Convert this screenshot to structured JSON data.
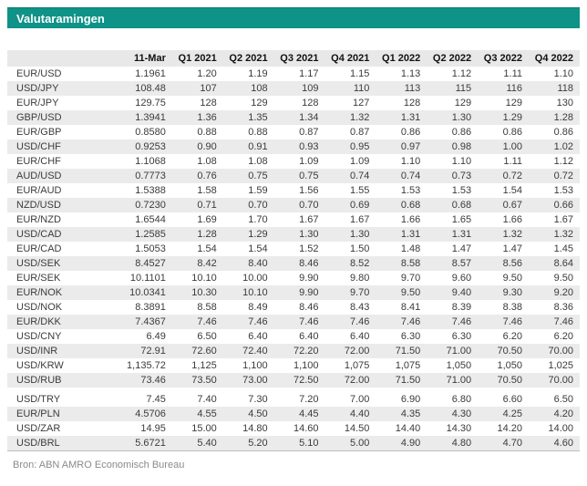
{
  "title": "Valutaramingen",
  "source": "Bron: ABN AMRO Economisch Bureau",
  "colors": {
    "accent_teal": "#0f9287",
    "stripe_gray": "#ebebeb",
    "header_gray": "#e8e8e8",
    "border_gray": "#bdbdbd",
    "text": "#3b3b3b",
    "source_text": "#8a8a8a"
  },
  "chart_data": {
    "type": "table",
    "columns": [
      "",
      "11-Mar",
      "Q1 2021",
      "Q2 2021",
      "Q3 2021",
      "Q4 2021",
      "Q1 2022",
      "Q2 2022",
      "Q3 2022",
      "Q4 2022"
    ],
    "group_break_index": 22,
    "rows": [
      {
        "pair": "EUR/USD",
        "values": [
          "1.1961",
          "1.20",
          "1.19",
          "1.17",
          "1.15",
          "1.13",
          "1.12",
          "1.11",
          "1.10"
        ]
      },
      {
        "pair": "USD/JPY",
        "values": [
          "108.48",
          "107",
          "108",
          "109",
          "110",
          "113",
          "115",
          "116",
          "118"
        ]
      },
      {
        "pair": "EUR/JPY",
        "values": [
          "129.75",
          "128",
          "129",
          "128",
          "127",
          "128",
          "129",
          "129",
          "130"
        ]
      },
      {
        "pair": "GBP/USD",
        "values": [
          "1.3941",
          "1.36",
          "1.35",
          "1.34",
          "1.32",
          "1.31",
          "1.30",
          "1.29",
          "1.28"
        ]
      },
      {
        "pair": "EUR/GBP",
        "values": [
          "0.8580",
          "0.88",
          "0.88",
          "0.87",
          "0.87",
          "0.86",
          "0.86",
          "0.86",
          "0.86"
        ]
      },
      {
        "pair": "USD/CHF",
        "values": [
          "0.9253",
          "0.90",
          "0.91",
          "0.93",
          "0.95",
          "0.97",
          "0.98",
          "1.00",
          "1.02"
        ]
      },
      {
        "pair": "EUR/CHF",
        "values": [
          "1.1068",
          "1.08",
          "1.08",
          "1.09",
          "1.09",
          "1.10",
          "1.10",
          "1.11",
          "1.12"
        ]
      },
      {
        "pair": "AUD/USD",
        "values": [
          "0.7773",
          "0.76",
          "0.75",
          "0.75",
          "0.74",
          "0.74",
          "0.73",
          "0.72",
          "0.72"
        ]
      },
      {
        "pair": "EUR/AUD",
        "values": [
          "1.5388",
          "1.58",
          "1.59",
          "1.56",
          "1.55",
          "1.53",
          "1.53",
          "1.54",
          "1.53"
        ]
      },
      {
        "pair": "NZD/USD",
        "values": [
          "0.7230",
          "0.71",
          "0.70",
          "0.70",
          "0.69",
          "0.68",
          "0.68",
          "0.67",
          "0.66"
        ]
      },
      {
        "pair": "EUR/NZD",
        "values": [
          "1.6544",
          "1.69",
          "1.70",
          "1.67",
          "1.67",
          "1.66",
          "1.65",
          "1.66",
          "1.67"
        ]
      },
      {
        "pair": "USD/CAD",
        "values": [
          "1.2585",
          "1.28",
          "1.29",
          "1.30",
          "1.30",
          "1.31",
          "1.31",
          "1.32",
          "1.32"
        ]
      },
      {
        "pair": "EUR/CAD",
        "values": [
          "1.5053",
          "1.54",
          "1.54",
          "1.52",
          "1.50",
          "1.48",
          "1.47",
          "1.47",
          "1.45"
        ]
      },
      {
        "pair": "USD/SEK",
        "values": [
          "8.4527",
          "8.42",
          "8.40",
          "8.46",
          "8.52",
          "8.58",
          "8.57",
          "8.56",
          "8.64"
        ]
      },
      {
        "pair": "EUR/SEK",
        "values": [
          "10.1101",
          "10.10",
          "10.00",
          "9.90",
          "9.80",
          "9.70",
          "9.60",
          "9.50",
          "9.50"
        ]
      },
      {
        "pair": "EUR/NOK",
        "values": [
          "10.0341",
          "10.30",
          "10.10",
          "9.90",
          "9.70",
          "9.50",
          "9.40",
          "9.30",
          "9.20"
        ]
      },
      {
        "pair": "USD/NOK",
        "values": [
          "8.3891",
          "8.58",
          "8.49",
          "8.46",
          "8.43",
          "8.41",
          "8.39",
          "8.38",
          "8.36"
        ]
      },
      {
        "pair": "EUR/DKK",
        "values": [
          "7.4367",
          "7.46",
          "7.46",
          "7.46",
          "7.46",
          "7.46",
          "7.46",
          "7.46",
          "7.46"
        ]
      },
      {
        "pair": "USD/CNY",
        "values": [
          "6.49",
          "6.50",
          "6.40",
          "6.40",
          "6.40",
          "6.30",
          "6.30",
          "6.20",
          "6.20"
        ]
      },
      {
        "pair": "USD/INR",
        "values": [
          "72.91",
          "72.60",
          "72.40",
          "72.20",
          "72.00",
          "71.50",
          "71.00",
          "70.50",
          "70.00"
        ]
      },
      {
        "pair": "USD/KRW",
        "values": [
          "1,135.72",
          "1,125",
          "1,100",
          "1,100",
          "1,075",
          "1,075",
          "1,050",
          "1,050",
          "1,025"
        ]
      },
      {
        "pair": "USD/RUB",
        "values": [
          "73.46",
          "73.50",
          "73.00",
          "72.50",
          "72.00",
          "71.50",
          "71.00",
          "70.50",
          "70.00"
        ]
      },
      {
        "pair": "USD/TRY",
        "values": [
          "7.45",
          "7.40",
          "7.30",
          "7.20",
          "7.00",
          "6.90",
          "6.80",
          "6.60",
          "6.50"
        ]
      },
      {
        "pair": "EUR/PLN",
        "values": [
          "4.5706",
          "4.55",
          "4.50",
          "4.45",
          "4.40",
          "4.35",
          "4.30",
          "4.25",
          "4.20"
        ]
      },
      {
        "pair": "USD/ZAR",
        "values": [
          "14.95",
          "15.00",
          "14.80",
          "14.60",
          "14.50",
          "14.40",
          "14.30",
          "14.20",
          "14.00"
        ]
      },
      {
        "pair": "USD/BRL",
        "values": [
          "5.6721",
          "5.40",
          "5.20",
          "5.10",
          "5.00",
          "4.90",
          "4.80",
          "4.70",
          "4.60"
        ]
      }
    ]
  }
}
